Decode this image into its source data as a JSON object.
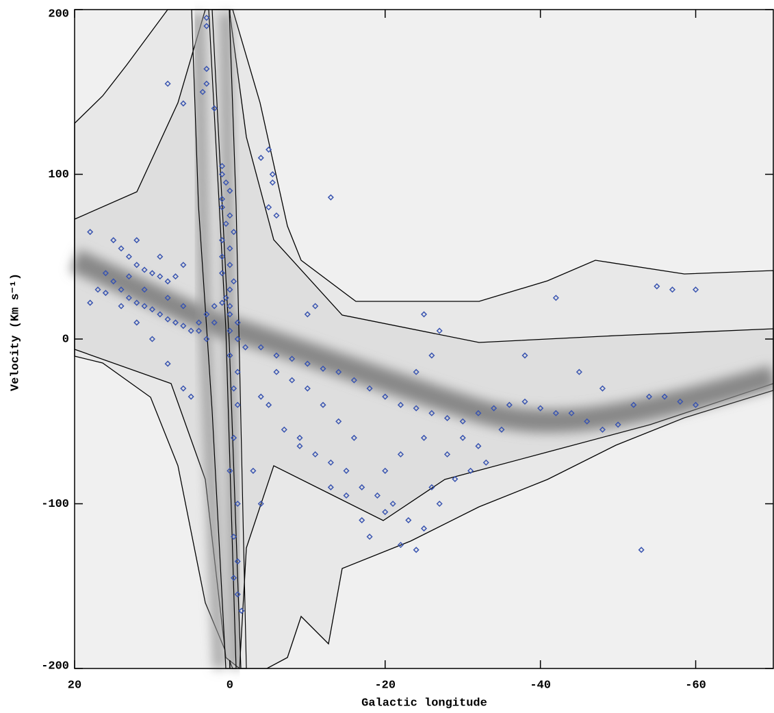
{
  "chart_data": {
    "type": "scatter",
    "x_label": "Galactic longitude",
    "y_label": "Velocity (Km s⁻¹)",
    "xlim": [
      20,
      -70
    ],
    "ylim": [
      -200,
      200
    ],
    "xticks": [
      20,
      0,
      -20,
      -40,
      -60
    ],
    "yticks": [
      -200,
      -100,
      0,
      100,
      200
    ],
    "color": "#3a55b0",
    "x": [
      3,
      3,
      3,
      3,
      3.5,
      2,
      8,
      6,
      1,
      1,
      0.5,
      0,
      1,
      1,
      0,
      0.5,
      -0.5,
      1,
      0,
      1,
      0,
      1,
      -0.5,
      0,
      0.5,
      0,
      0,
      -1,
      0,
      -1,
      0,
      -1,
      -0.5,
      -1,
      -0.5,
      0,
      -1,
      -0.5,
      -0.5,
      -1,
      -1.5,
      -1,
      -5,
      -5.5,
      -5.5,
      -6,
      -5,
      -13,
      -4,
      18,
      15,
      14,
      13,
      12,
      11,
      10,
      9,
      8,
      15,
      14,
      13,
      12,
      11,
      10,
      9,
      8,
      7,
      6,
      5,
      4,
      3,
      2,
      1,
      18,
      16,
      14,
      12,
      10,
      8,
      6,
      4,
      3,
      2,
      17,
      16,
      13,
      11,
      7,
      6,
      9,
      12,
      8,
      6,
      5,
      -2,
      -4,
      -6,
      -8,
      -10,
      -12,
      -14,
      -16,
      -18,
      -20,
      -22,
      -24,
      -26,
      -28,
      -30,
      -32,
      -34,
      -36,
      -38,
      -40,
      -42,
      -44,
      -46,
      -48,
      -50,
      -52,
      -54,
      -56,
      -58,
      -60,
      -57,
      -55,
      -60,
      -48,
      -45,
      -42,
      -38,
      -5,
      -7,
      -9,
      -11,
      -13,
      -15,
      -17,
      -19,
      -21,
      -23,
      -25,
      -27,
      -29,
      -31,
      -33,
      -18,
      -22,
      -24,
      -20,
      -26,
      -28,
      -30,
      -32,
      -35,
      -16,
      -14,
      -12,
      -10,
      -8,
      -6,
      -15,
      -13,
      -17,
      -25,
      -22,
      -20,
      -24,
      -26,
      -27,
      -25,
      -11,
      -10,
      -53,
      -9,
      -4,
      -3,
      -4
    ],
    "values": [
      190,
      195,
      164,
      155,
      150,
      140,
      155,
      143,
      105,
      100,
      95,
      90,
      85,
      80,
      75,
      70,
      65,
      60,
      55,
      50,
      45,
      40,
      35,
      30,
      25,
      20,
      15,
      10,
      5,
      0,
      -10,
      -20,
      -30,
      -40,
      -60,
      -80,
      -100,
      -120,
      -145,
      -155,
      -165,
      -135,
      115,
      100,
      95,
      75,
      80,
      86,
      110,
      65,
      60,
      55,
      50,
      45,
      42,
      40,
      38,
      35,
      35,
      30,
      25,
      22,
      20,
      18,
      15,
      12,
      10,
      8,
      5,
      10,
      15,
      20,
      22,
      22,
      28,
      20,
      10,
      0,
      25,
      20,
      5,
      0,
      10,
      30,
      40,
      38,
      30,
      38,
      45,
      50,
      60,
      -15,
      -30,
      -35,
      -5,
      -5,
      -10,
      -12,
      -15,
      -18,
      -20,
      -25,
      -30,
      -35,
      -40,
      -42,
      -45,
      -48,
      -50,
      -45,
      -42,
      -40,
      -38,
      -42,
      -45,
      -45,
      -50,
      -55,
      -52,
      -40,
      -35,
      -35,
      -38,
      -40,
      30,
      32,
      30,
      -30,
      -20,
      25,
      -10,
      -40,
      -55,
      -65,
      -70,
      -75,
      -80,
      -90,
      -95,
      -100,
      -110,
      -115,
      -100,
      -85,
      -80,
      -75,
      -120,
      -125,
      -128,
      -105,
      -90,
      -70,
      -60,
      -65,
      -55,
      -60,
      -50,
      -40,
      -30,
      -25,
      -20,
      -95,
      -90,
      -110,
      -60,
      -70,
      -80,
      -20,
      -10,
      5,
      15,
      20,
      15,
      -128,
      -60,
      -35,
      -80,
      -100
    ]
  }
}
